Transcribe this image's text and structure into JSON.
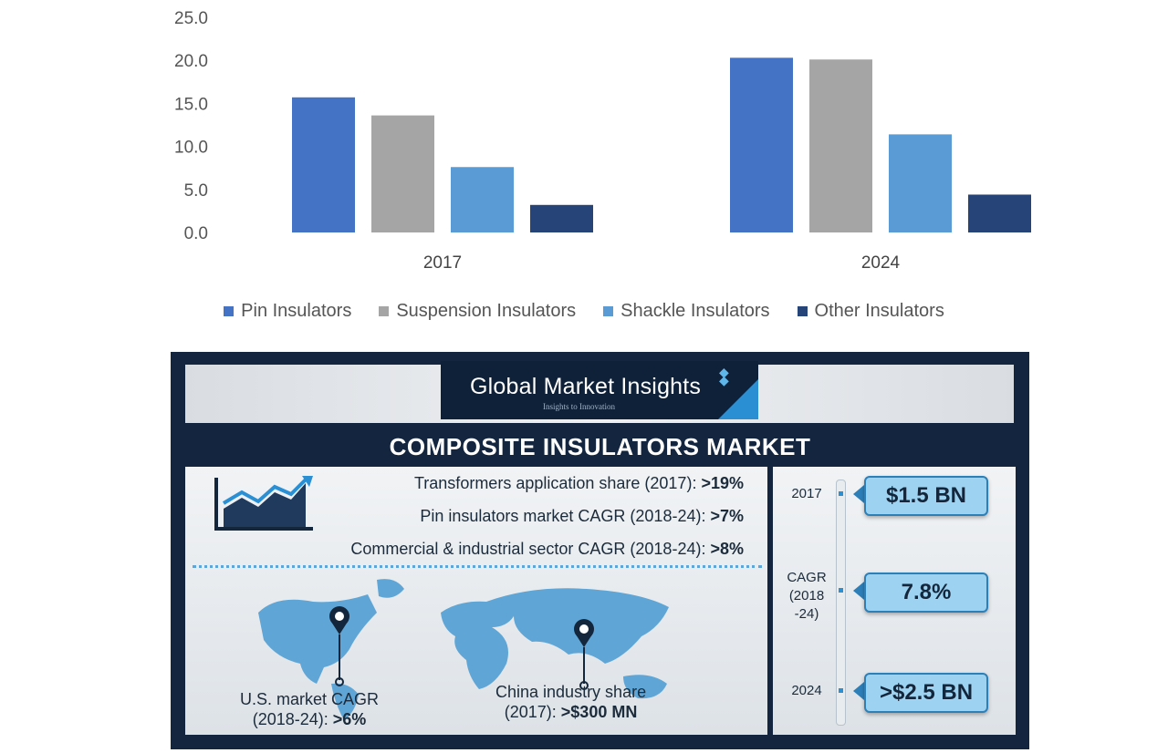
{
  "chart_data": {
    "type": "bar",
    "categories": [
      "2017",
      "2024"
    ],
    "series": [
      {
        "name": "Pin Insulators",
        "color": "#4472c4",
        "values": [
          15.7,
          20.3
        ]
      },
      {
        "name": "Suspension Insulators",
        "color": "#a5a5a5",
        "values": [
          13.6,
          20.1
        ]
      },
      {
        "name": "Shackle Insulators",
        "color": "#5b9bd5",
        "values": [
          7.6,
          11.4
        ]
      },
      {
        "name": "Other Insulators",
        "color": "#264478",
        "values": [
          3.2,
          4.4
        ]
      }
    ],
    "yticks": [
      "0.0",
      "5.0",
      "10.0",
      "15.0",
      "20.0",
      "25.0"
    ],
    "ylim": [
      0,
      25
    ],
    "grid": false,
    "legend": "bottom"
  },
  "infographic": {
    "logo_title": "Global Market Insights",
    "logo_tagline": "Insights to Innovation",
    "title": "COMPOSITE INSULATORS MARKET",
    "facts": [
      {
        "label": "Transformers application share (2017): ",
        "value": ">19%"
      },
      {
        "label": "Pin insulators market CAGR (2018-24): ",
        "value": ">7%"
      },
      {
        "label": "Commercial & industrial sector CAGR (2018-24): ",
        "value": ">8%"
      }
    ],
    "us_label_line1": "U.S. market CAGR",
    "us_label_line2": "(2018-24): ",
    "us_value": ">6%",
    "china_label_line1": "China industry share",
    "china_label_line2": "(2017): ",
    "china_value": ">$300 MN",
    "timeline": {
      "year_2017": "2017",
      "value_2017": "$1.5 BN",
      "cagr_line1": "CAGR",
      "cagr_line2": "(2018",
      "cagr_line3": "-24)",
      "cagr_value": "7.8%",
      "year_2024": "2024",
      "value_2024": ">$2.5 BN"
    },
    "colors": {
      "navy": "#13253f",
      "accent": "#2b8fd3",
      "box": "#9dd3f0"
    }
  }
}
